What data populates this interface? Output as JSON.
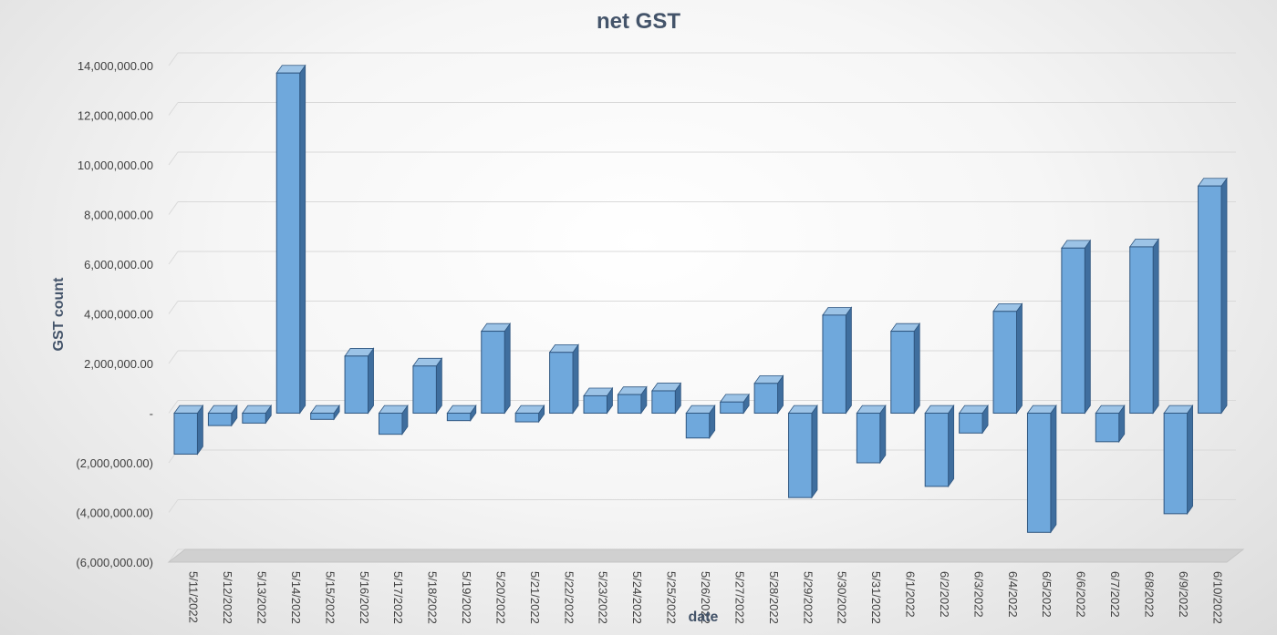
{
  "chart_data": {
    "type": "bar",
    "title": "net GST",
    "xlabel": "date",
    "ylabel": "GST count",
    "ylim": [
      -6000000,
      14000000
    ],
    "yticks": [
      14000000,
      12000000,
      10000000,
      8000000,
      6000000,
      4000000,
      2000000,
      0,
      -2000000,
      -4000000,
      -6000000
    ],
    "ytick_labels": [
      "14,000,000.00",
      "12,000,000.00",
      "10,000,000.00",
      "8,000,000.00",
      "6,000,000.00",
      "4,000,000.00",
      "2,000,000.00",
      "-",
      "(2,000,000.00)",
      "(4,000,000.00)",
      "(6,000,000.00)"
    ],
    "grid": true,
    "bar_color": "#6fa8dc",
    "categories": [
      "5/11/2022",
      "5/12/2022",
      "5/13/2022",
      "5/14/2022",
      "5/15/2022",
      "5/16/2022",
      "5/17/2022",
      "5/18/2022",
      "5/19/2022",
      "5/20/2022",
      "5/21/2022",
      "5/22/2022",
      "5/23/2022",
      "5/24/2022",
      "5/25/2022",
      "5/26/2022",
      "5/27/2022",
      "5/28/2022",
      "5/29/2022",
      "5/30/2022",
      "5/31/2022",
      "6/1/2022",
      "6/2/2022",
      "6/3/2022",
      "6/4/2022",
      "6/5/2022",
      "6/6/2022",
      "6/7/2022",
      "6/8/2022",
      "6/9/2022",
      "6/10/2022"
    ],
    "values": [
      -1650000,
      -500000,
      -400000,
      13700000,
      -250000,
      2300000,
      -850000,
      1900000,
      -300000,
      3300000,
      -350000,
      2450000,
      700000,
      750000,
      900000,
      -1000000,
      450000,
      1200000,
      -3400000,
      3950000,
      -2000000,
      3300000,
      -2950000,
      -800000,
      4100000,
      -4800000,
      6650000,
      -1150000,
      6700000,
      -4050000,
      9150000
    ]
  }
}
